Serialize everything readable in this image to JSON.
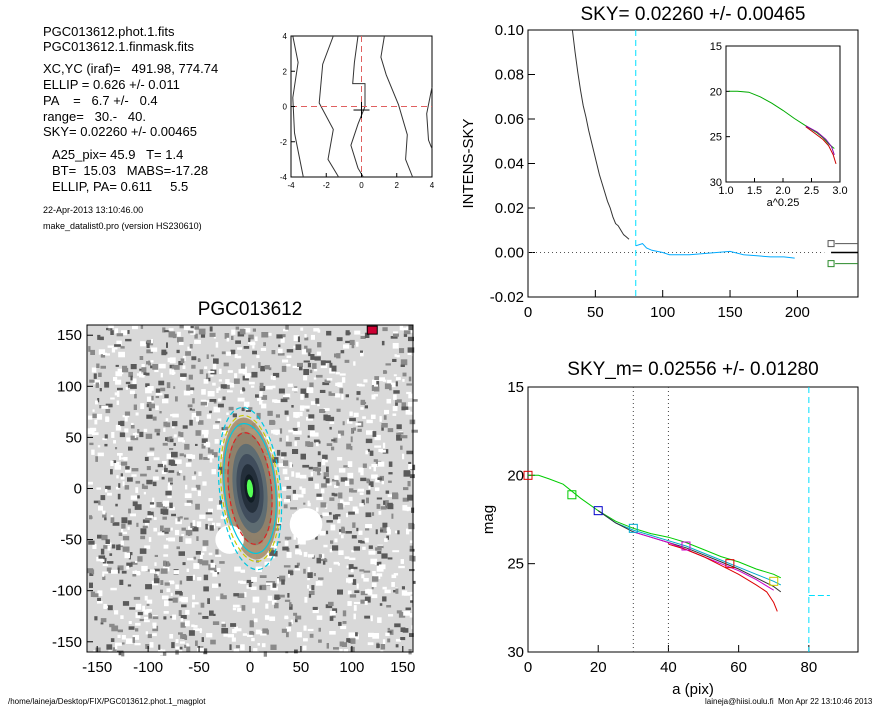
{
  "header": {
    "lines": [
      "PGC013612.phot.1.fits",
      "PGC013612.1.finmask.fits",
      "XC,YC (iraf)=   491.98, 774.74",
      "ELLIP = 0.626 +/- 0.011",
      "PA    =   6.7 +/-   0.4",
      "range=   30.-   40.",
      "SKY= 0.02260 +/- 0.00465",
      "A25_pix= 45.9   T= 1.4",
      "BT=  15.03   MABS=-17.28",
      "ELLIP, PA= 0.611     5.5"
    ],
    "date": "22-Apr-2013 13:10:46.00",
    "program": "make_datalist0.pro (version HS230610)"
  },
  "footer": {
    "left": "/home/laineja/Desktop/FIX/PGC013612.phot.1_magplot",
    "right": "laineja@hiisi.oulu.fi  Mon Apr 22 13:10:46 2013"
  },
  "chart_data": [
    {
      "id": "center-contour",
      "type": "line",
      "title": "",
      "xlim": [
        -4,
        4
      ],
      "ylim": [
        -4,
        4
      ],
      "xticks": [
        "-4",
        "-2",
        "0",
        "2",
        "4"
      ],
      "yticks": [
        "4",
        "2",
        "0",
        "-2",
        "-4"
      ],
      "crosshair": {
        "x": 0,
        "y": 0,
        "color": "#e06060"
      },
      "contours": [
        [
          [
            -3.9,
            4
          ],
          [
            -3.6,
            2.5
          ],
          [
            -3.9,
            0.5
          ],
          [
            -3.8,
            -1.5
          ],
          [
            -3.3,
            -4
          ]
        ],
        [
          [
            -1.6,
            4
          ],
          [
            -2.2,
            2.4
          ],
          [
            -2.4,
            0.2
          ],
          [
            -1.6,
            -1.3
          ],
          [
            -1.9,
            -3.0
          ],
          [
            -1.3,
            -4
          ]
        ],
        [
          [
            -0.2,
            4
          ],
          [
            -0.4,
            2.5
          ],
          [
            -0.5,
            1.3
          ],
          [
            0.2,
            1.3
          ],
          [
            0.2,
            0
          ],
          [
            -0.2,
            -1.0
          ],
          [
            -0.6,
            -2.2
          ],
          [
            -0.2,
            -3.5
          ],
          [
            0.1,
            -4
          ]
        ],
        [
          [
            1.3,
            4
          ],
          [
            1.1,
            2.8
          ],
          [
            1.4,
            1.8
          ],
          [
            2.1,
            0.1
          ],
          [
            2.6,
            -1.6
          ],
          [
            2.5,
            -3.0
          ],
          [
            2.9,
            -4
          ]
        ],
        [
          [
            4.0,
            1.1
          ],
          [
            3.7,
            -0.4
          ],
          [
            3.8,
            -1.9
          ],
          [
            4.0,
            -2.4
          ]
        ]
      ]
    },
    {
      "id": "sky-profile",
      "type": "line",
      "title": "SKY= 0.02260 +/- 0.00465",
      "xlabel": "",
      "ylabel": "INTENS-SKY",
      "xlim": [
        0,
        245
      ],
      "ylim": [
        -0.02,
        0.1
      ],
      "xticks": [
        0,
        50,
        100,
        150,
        200
      ],
      "yticks": [
        "0.10",
        "0.08",
        "0.06",
        "0.04",
        "0.02",
        "0.00",
        "-0.02"
      ],
      "xtick_values": [
        0,
        50,
        100,
        150,
        200
      ],
      "ytick_values": [
        0.1,
        0.08,
        0.06,
        0.04,
        0.02,
        0,
        -0.02
      ],
      "vline": 80,
      "series": [
        {
          "color": "#333333",
          "x": [
            33,
            35,
            37,
            39,
            41,
            43,
            45,
            47,
            49,
            51,
            53,
            55,
            57,
            59,
            61,
            63,
            65,
            67,
            69,
            71,
            73,
            75
          ],
          "y": [
            0.1,
            0.09,
            0.081,
            0.073,
            0.066,
            0.061,
            0.055,
            0.05,
            0.045,
            0.04,
            0.035,
            0.031,
            0.027,
            0.023,
            0.02,
            0.016,
            0.013,
            0.012,
            0.01,
            0.008,
            0.007,
            0.006
          ]
        },
        {
          "color": "#00aaff",
          "x": [
            80,
            85,
            88,
            92,
            96,
            100,
            105,
            110,
            120,
            130,
            140,
            150,
            160,
            170,
            180,
            190,
            198
          ],
          "y": [
            0.003,
            0.004,
            0.002,
            0.001,
            0.0005,
            0,
            -0.001,
            -0.001,
            -0.001,
            -0.0005,
            0,
            0.0005,
            -0.001,
            -0.0015,
            -0.002,
            -0.002,
            -0.0025
          ]
        }
      ],
      "side_markers": [
        {
          "y": 0.004,
          "color": "#555555"
        },
        {
          "y": -0.005,
          "color": "#2a8a2a"
        }
      ]
    },
    {
      "id": "inset-profile",
      "type": "line",
      "title": "",
      "xlabel": "a^0.25",
      "ylabel": "",
      "xlim": [
        1.0,
        3.0
      ],
      "ylim": [
        15,
        30
      ],
      "xticks": [
        "1.0",
        "1.5",
        "2.0",
        "2.5",
        "3.0"
      ],
      "yticks": [
        "15",
        "20",
        "25",
        "30"
      ],
      "xtick_values": [
        1.0,
        1.5,
        2.0,
        2.5,
        3.0
      ],
      "ytick_values": [
        15,
        20,
        25,
        30
      ],
      "series": [
        {
          "color": "#00aa00",
          "x": [
            1.05,
            1.2,
            1.4,
            1.6,
            1.8,
            2.0,
            2.2,
            2.4,
            2.6,
            2.7,
            2.8,
            2.9
          ],
          "y": [
            20.0,
            20.0,
            20.1,
            20.6,
            21.3,
            22.1,
            23.0,
            23.8,
            24.6,
            25.1,
            25.8,
            26.3
          ]
        },
        {
          "color": "#cc0000",
          "x": [
            2.4,
            2.55,
            2.7,
            2.8,
            2.88,
            2.93
          ],
          "y": [
            23.9,
            24.6,
            25.3,
            26.0,
            27.0,
            28.0
          ]
        },
        {
          "color": "#8800aa",
          "x": [
            2.4,
            2.6,
            2.75,
            2.85,
            2.9
          ],
          "y": [
            23.8,
            24.5,
            25.3,
            26.1,
            27.0
          ]
        }
      ]
    },
    {
      "id": "galaxy-image",
      "type": "heatmap",
      "title": "PGC013612",
      "xlim": [
        -160,
        160
      ],
      "ylim": [
        -160,
        160
      ],
      "xticks": [
        -150,
        -100,
        -50,
        0,
        50,
        100,
        150
      ],
      "yticks": [
        150,
        100,
        50,
        0,
        -50,
        -100,
        -150
      ],
      "xtick_values": [
        -150,
        -100,
        -50,
        0,
        50,
        100,
        150
      ],
      "ytick_values": [
        150,
        100,
        50,
        0,
        -50,
        -100,
        -150
      ],
      "galaxy_center": [
        0,
        0
      ],
      "ellipses": [
        {
          "a": 80,
          "b": 30,
          "color": "#00c8e0",
          "style": "dashed"
        },
        {
          "a": 64,
          "b": 25,
          "color": "#00c8e0",
          "style": "solid"
        },
        {
          "a": 55,
          "b": 21,
          "color": "#dd2222",
          "style": "dashed"
        },
        {
          "a": 72,
          "b": 28,
          "color": "#cccc00",
          "style": "dashed"
        }
      ],
      "masks": [
        [
          55,
          -35,
          16
        ],
        [
          -20,
          -50,
          14
        ]
      ]
    },
    {
      "id": "magnitude-profile",
      "type": "line",
      "title": "SKY_m=  0.02556 +/- 0.01280",
      "xlabel": "a (pix)",
      "ylabel": "mag",
      "xlim": [
        0,
        94
      ],
      "ylim": [
        15,
        30
      ],
      "xticks": [
        0,
        20,
        40,
        60,
        80
      ],
      "yticks": [
        15,
        20,
        25,
        30
      ],
      "xtick_values": [
        0,
        20,
        40,
        60,
        80
      ],
      "ytick_values": [
        15,
        20,
        25,
        30
      ],
      "range_lines": [
        30,
        40
      ],
      "sky_line_x": 80,
      "sky_segment": {
        "x": [
          80,
          86
        ],
        "y": 26.8
      },
      "series": [
        {
          "color": "#00cc00",
          "x": [
            0,
            3,
            6,
            10,
            15,
            20,
            25,
            30,
            35,
            40,
            45,
            50,
            55,
            60,
            65,
            70,
            72
          ],
          "y": [
            20.0,
            20.0,
            20.2,
            20.5,
            21.3,
            22.0,
            22.6,
            23.0,
            23.3,
            23.5,
            23.8,
            24.2,
            24.6,
            24.9,
            25.3,
            25.6,
            25.8
          ]
        },
        {
          "color": "#00aacc",
          "x": [
            20,
            25,
            30,
            35,
            40,
            45,
            50,
            55,
            60,
            65,
            70,
            72
          ],
          "y": [
            22.0,
            22.7,
            23.1,
            23.4,
            23.7,
            24.0,
            24.4,
            24.8,
            25.2,
            25.6,
            26.0,
            26.2
          ]
        },
        {
          "color": "#333333",
          "x": [
            20,
            25,
            30,
            35,
            40,
            45,
            50,
            55,
            60,
            65,
            70,
            72
          ],
          "y": [
            22.0,
            22.7,
            23.2,
            23.5,
            23.8,
            24.1,
            24.5,
            24.9,
            25.3,
            25.8,
            26.3,
            26.6
          ]
        },
        {
          "color": "#cc00cc",
          "x": [
            30,
            35,
            40,
            45,
            50,
            55,
            60,
            65,
            70
          ],
          "y": [
            23.2,
            23.5,
            23.8,
            24.2,
            24.6,
            25.0,
            25.4,
            25.9,
            26.5
          ]
        },
        {
          "color": "#dd0000",
          "x": [
            40,
            45,
            50,
            55,
            60,
            65,
            68,
            70,
            71
          ],
          "y": [
            23.9,
            24.2,
            24.6,
            25.1,
            25.6,
            26.2,
            26.6,
            27.2,
            27.7
          ]
        }
      ],
      "markers": [
        {
          "x": 0,
          "y": 20.0,
          "color": "#dd0000"
        },
        {
          "x": 12.5,
          "y": 21.1,
          "color": "#00cc00"
        },
        {
          "x": 20,
          "y": 22.0,
          "color": "#0000cc"
        },
        {
          "x": 30,
          "y": 23.0,
          "color": "#00aacc"
        },
        {
          "x": 45,
          "y": 24.0,
          "color": "#cc00cc"
        },
        {
          "x": 57.5,
          "y": 25.0,
          "color": "#dd0000"
        },
        {
          "x": 70,
          "y": 26.0,
          "color": "#cccc00"
        }
      ]
    }
  ]
}
